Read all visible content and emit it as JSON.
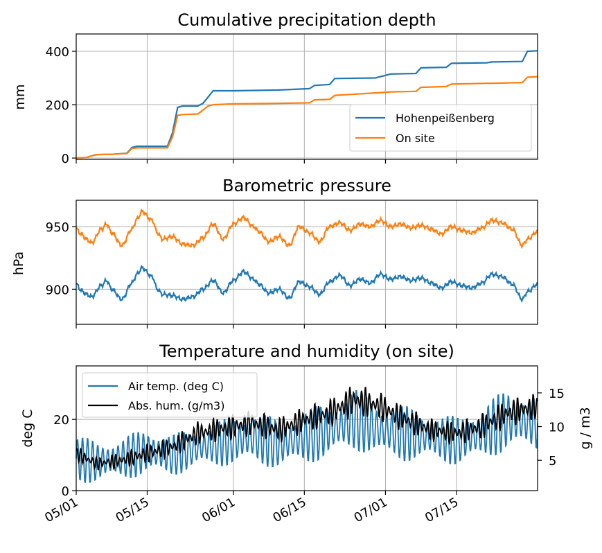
{
  "chart_data": [
    {
      "type": "line",
      "title": "Cumulative precipitation depth",
      "ylabel": "mm",
      "x_range": [
        "2019-05-01",
        "2019-07-31"
      ],
      "ylim": [
        -5,
        465
      ],
      "yticks": [
        0,
        200,
        400
      ],
      "grid": true,
      "legend_position": "lower-right",
      "series": [
        {
          "name": "Hohenpeißenberg",
          "color": "#1f77b4",
          "x": [
            "2019-05-01",
            "2019-05-03",
            "2019-05-04",
            "2019-05-05",
            "2019-05-08",
            "2019-05-11",
            "2019-05-12",
            "2019-05-13",
            "2019-05-19",
            "2019-05-20",
            "2019-05-21",
            "2019-05-22",
            "2019-05-25",
            "2019-05-26",
            "2019-05-27",
            "2019-05-28",
            "2019-06-01",
            "2019-06-10",
            "2019-06-16",
            "2019-06-17",
            "2019-06-20",
            "2019-06-21",
            "2019-06-29",
            "2019-07-02",
            "2019-07-07",
            "2019-07-08",
            "2019-07-13",
            "2019-07-14",
            "2019-07-21",
            "2019-07-22",
            "2019-07-28",
            "2019-07-29",
            "2019-07-31"
          ],
          "values": [
            0,
            2,
            8,
            13,
            14,
            18,
            40,
            44,
            44,
            95,
            190,
            195,
            195,
            205,
            228,
            252,
            252,
            255,
            260,
            272,
            276,
            298,
            300,
            315,
            317,
            338,
            340,
            355,
            357,
            360,
            362,
            400,
            402
          ]
        },
        {
          "name": "On site",
          "color": "#ff7f0e",
          "x": [
            "2019-05-01",
            "2019-05-03",
            "2019-05-04",
            "2019-05-05",
            "2019-05-08",
            "2019-05-11",
            "2019-05-12",
            "2019-05-13",
            "2019-05-19",
            "2019-05-20",
            "2019-05-21",
            "2019-05-22",
            "2019-05-25",
            "2019-05-26",
            "2019-05-27",
            "2019-05-28",
            "2019-06-01",
            "2019-06-10",
            "2019-06-16",
            "2019-06-17",
            "2019-06-20",
            "2019-06-21",
            "2019-06-29",
            "2019-07-02",
            "2019-07-07",
            "2019-07-08",
            "2019-07-13",
            "2019-07-14",
            "2019-07-21",
            "2019-07-22",
            "2019-07-28",
            "2019-07-29",
            "2019-07-31"
          ],
          "values": [
            0,
            2,
            8,
            13,
            14,
            17,
            36,
            38,
            38,
            80,
            160,
            163,
            165,
            180,
            195,
            200,
            203,
            205,
            207,
            218,
            220,
            235,
            244,
            248,
            250,
            265,
            268,
            277,
            280,
            280,
            283,
            303,
            305
          ]
        }
      ]
    },
    {
      "type": "line",
      "title": "Barometric pressure",
      "ylabel": "hPa",
      "x_range": [
        "2019-05-01",
        "2019-07-31"
      ],
      "ylim": [
        872,
        971
      ],
      "yticks": [
        900,
        950
      ],
      "grid": true,
      "series": [
        {
          "name": "",
          "color": "#ff7f0e",
          "x": [
            "2019-05-01",
            "2019-05-02",
            "2019-05-03",
            "2019-05-04",
            "2019-05-06",
            "2019-05-07",
            "2019-05-08",
            "2019-05-10",
            "2019-05-12",
            "2019-05-13",
            "2019-05-14",
            "2019-05-16",
            "2019-05-17",
            "2019-05-18",
            "2019-05-20",
            "2019-05-22",
            "2019-05-24",
            "2019-05-26",
            "2019-05-28",
            "2019-05-30",
            "2019-06-01",
            "2019-06-03",
            "2019-06-05",
            "2019-06-06",
            "2019-06-08",
            "2019-06-10",
            "2019-06-12",
            "2019-06-14",
            "2019-06-16",
            "2019-06-18",
            "2019-06-20",
            "2019-06-22",
            "2019-06-24",
            "2019-06-26",
            "2019-06-28",
            "2019-06-30",
            "2019-07-02",
            "2019-07-04",
            "2019-07-06",
            "2019-07-08",
            "2019-07-10",
            "2019-07-12",
            "2019-07-14",
            "2019-07-16",
            "2019-07-18",
            "2019-07-20",
            "2019-07-22",
            "2019-07-24",
            "2019-07-26",
            "2019-07-28",
            "2019-07-29",
            "2019-07-31"
          ],
          "values": [
            948,
            944,
            940,
            937,
            948,
            952,
            945,
            935,
            948,
            956,
            962,
            955,
            945,
            940,
            942,
            936,
            935,
            941,
            952,
            940,
            952,
            957,
            950,
            946,
            938,
            942,
            935,
            950,
            945,
            938,
            950,
            953,
            947,
            952,
            950,
            955,
            950,
            952,
            949,
            951,
            948,
            944,
            950,
            947,
            945,
            949,
            955,
            953,
            948,
            935,
            940,
            946
          ]
        },
        {
          "name": "",
          "color": "#1f77b4",
          "x": [
            "2019-05-01",
            "2019-05-02",
            "2019-05-03",
            "2019-05-04",
            "2019-05-06",
            "2019-05-07",
            "2019-05-08",
            "2019-05-10",
            "2019-05-12",
            "2019-05-13",
            "2019-05-14",
            "2019-05-16",
            "2019-05-17",
            "2019-05-18",
            "2019-05-20",
            "2019-05-22",
            "2019-05-24",
            "2019-05-26",
            "2019-05-28",
            "2019-05-30",
            "2019-06-01",
            "2019-06-03",
            "2019-06-05",
            "2019-06-06",
            "2019-06-08",
            "2019-06-10",
            "2019-06-12",
            "2019-06-14",
            "2019-06-16",
            "2019-06-18",
            "2019-06-20",
            "2019-06-22",
            "2019-06-24",
            "2019-06-26",
            "2019-06-28",
            "2019-06-30",
            "2019-07-02",
            "2019-07-04",
            "2019-07-06",
            "2019-07-08",
            "2019-07-10",
            "2019-07-12",
            "2019-07-14",
            "2019-07-16",
            "2019-07-18",
            "2019-07-20",
            "2019-07-22",
            "2019-07-24",
            "2019-07-26",
            "2019-07-28",
            "2019-07-29",
            "2019-07-31"
          ],
          "values": [
            904,
            899,
            896,
            894,
            903,
            907,
            900,
            892,
            905,
            912,
            917,
            910,
            900,
            896,
            895,
            892,
            894,
            900,
            907,
            897,
            907,
            914,
            908,
            904,
            897,
            900,
            893,
            906,
            902,
            896,
            906,
            911,
            903,
            908,
            905,
            912,
            908,
            910,
            907,
            909,
            905,
            901,
            906,
            903,
            901,
            905,
            912,
            910,
            904,
            892,
            898,
            904
          ]
        }
      ]
    },
    {
      "type": "line",
      "title": "Temperature and humidity (on site)",
      "ylabel": "deg C",
      "ylabel_right": "g / m3",
      "x_range": [
        "2019-05-01",
        "2019-07-31"
      ],
      "xticks": [
        "05/01",
        "05/15",
        "06/01",
        "06/15",
        "07/01",
        "07/15"
      ],
      "ylim": [
        0,
        35
      ],
      "yticks": [
        0,
        20
      ],
      "ylim_right": [
        0.5,
        19
      ],
      "yticks_right": [
        5,
        10,
        15
      ],
      "grid": true,
      "legend_position": "upper-left",
      "series": [
        {
          "name": "Air temp. (deg C)",
          "color": "#1f77b4",
          "axis": "left",
          "x": [
            "2019-05-01",
            "2019-05-05",
            "2019-05-10",
            "2019-05-15",
            "2019-05-20",
            "2019-05-25",
            "2019-06-01",
            "2019-06-05",
            "2019-06-10",
            "2019-06-15",
            "2019-06-20",
            "2019-06-25",
            "2019-06-30",
            "2019-07-05",
            "2019-07-10",
            "2019-07-15",
            "2019-07-20",
            "2019-07-25",
            "2019-07-31"
          ],
          "mean": [
            9,
            8,
            9,
            11,
            10,
            12,
            14,
            15,
            13,
            15,
            17,
            20,
            17,
            16,
            15,
            14,
            16,
            20,
            19
          ],
          "daily_amplitude": [
            7,
            6,
            6,
            7,
            6,
            6,
            7,
            8,
            7,
            8,
            8,
            9,
            8,
            8,
            7,
            7,
            8,
            9,
            8
          ]
        },
        {
          "name": "Abs. hum. (g/m3)",
          "color": "#000000",
          "axis": "right",
          "x": [
            "2019-05-01",
            "2019-05-05",
            "2019-05-10",
            "2019-05-15",
            "2019-05-20",
            "2019-05-25",
            "2019-06-01",
            "2019-06-05",
            "2019-06-10",
            "2019-06-15",
            "2019-06-20",
            "2019-06-25",
            "2019-06-30",
            "2019-07-05",
            "2019-07-10",
            "2019-07-15",
            "2019-07-20",
            "2019-07-25",
            "2019-07-31"
          ],
          "mean": [
            6,
            4.5,
            5,
            6,
            7,
            9,
            10,
            10.5,
            9.5,
            11,
            12,
            14,
            13,
            11,
            9.5,
            9,
            10,
            12,
            13
          ],
          "daily_amplitude": [
            1.2,
            1,
            1.2,
            1.5,
            1.5,
            1.8,
            2,
            2,
            2,
            2,
            2.2,
            2.5,
            2.2,
            2,
            1.8,
            1.8,
            2,
            2.2,
            2
          ]
        }
      ]
    }
  ]
}
